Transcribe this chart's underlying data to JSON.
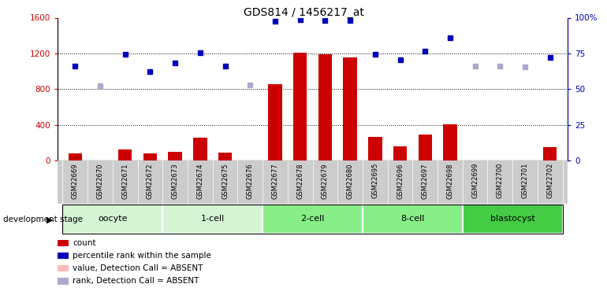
{
  "title": "GDS814 / 1456217_at",
  "samples": [
    "GSM22669",
    "GSM22670",
    "GSM22671",
    "GSM22672",
    "GSM22673",
    "GSM22674",
    "GSM22675",
    "GSM22676",
    "GSM22677",
    "GSM22678",
    "GSM22679",
    "GSM22680",
    "GSM22695",
    "GSM22696",
    "GSM22697",
    "GSM22698",
    "GSM22699",
    "GSM22700",
    "GSM22701",
    "GSM22702"
  ],
  "count_values": [
    80,
    0,
    130,
    80,
    100,
    260,
    90,
    0,
    860,
    1210,
    1190,
    1160,
    270,
    160,
    290,
    410,
    0,
    0,
    0,
    150
  ],
  "count_absent": [
    false,
    true,
    false,
    false,
    false,
    false,
    false,
    true,
    false,
    false,
    false,
    false,
    false,
    false,
    false,
    false,
    true,
    true,
    true,
    false
  ],
  "rank_values": [
    1060,
    840,
    1190,
    1000,
    1090,
    1210,
    1060,
    850,
    1560,
    1580,
    1570,
    1565,
    1190,
    1130,
    1230,
    1380,
    1060,
    1060,
    1050,
    1160
  ],
  "rank_absent": [
    false,
    true,
    false,
    false,
    false,
    false,
    false,
    true,
    false,
    false,
    false,
    false,
    false,
    false,
    false,
    false,
    true,
    true,
    true,
    false
  ],
  "stage_groups": [
    {
      "label": "oocyte",
      "indices": [
        0,
        1,
        2,
        3
      ],
      "color": "#d4f5d4"
    },
    {
      "label": "1-cell",
      "indices": [
        4,
        5,
        6,
        7
      ],
      "color": "#d4f5d4"
    },
    {
      "label": "2-cell",
      "indices": [
        8,
        9,
        10,
        11
      ],
      "color": "#88ee88"
    },
    {
      "label": "8-cell",
      "indices": [
        12,
        13,
        14,
        15
      ],
      "color": "#88ee88"
    },
    {
      "label": "blastocyst",
      "indices": [
        16,
        17,
        18,
        19
      ],
      "color": "#44cc44"
    }
  ],
  "ylim_left": [
    0,
    1600
  ],
  "ylim_right": [
    0,
    100
  ],
  "yticks_left": [
    0,
    400,
    800,
    1200,
    1600
  ],
  "yticks_right": [
    0,
    25,
    50,
    75,
    100
  ],
  "bar_color_present": "#cc0000",
  "bar_color_absent": "#ffbbbb",
  "dot_color_present": "#0000bb",
  "dot_color_absent": "#aaaacc",
  "background_color": "#ffffff",
  "development_stage_label": "development stage"
}
